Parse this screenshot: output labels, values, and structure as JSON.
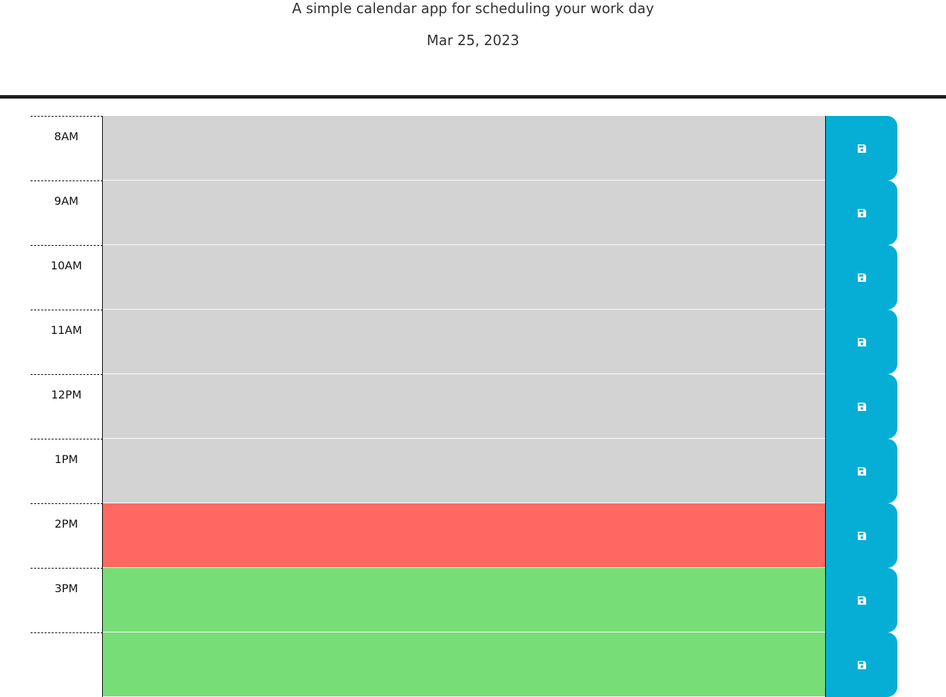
{
  "header": {
    "subtitle": "A simple calendar app for scheduling your work day",
    "date": "Mar 25, 2023"
  },
  "hours": [
    {
      "label": "8AM",
      "status": "past",
      "text": ""
    },
    {
      "label": "9AM",
      "status": "past",
      "text": ""
    },
    {
      "label": "10AM",
      "status": "past",
      "text": ""
    },
    {
      "label": "11AM",
      "status": "past",
      "text": ""
    },
    {
      "label": "12PM",
      "status": "past",
      "text": ""
    },
    {
      "label": "1PM",
      "status": "past",
      "text": ""
    },
    {
      "label": "2PM",
      "status": "present",
      "text": ""
    },
    {
      "label": "3PM",
      "status": "future",
      "text": ""
    },
    {
      "label": "",
      "status": "future",
      "text": ""
    }
  ],
  "save_icon": "save-icon",
  "colors": {
    "past": "#d3d3d3",
    "present": "#ff6961",
    "future": "#77dd77",
    "save_button": "#06aed5"
  }
}
